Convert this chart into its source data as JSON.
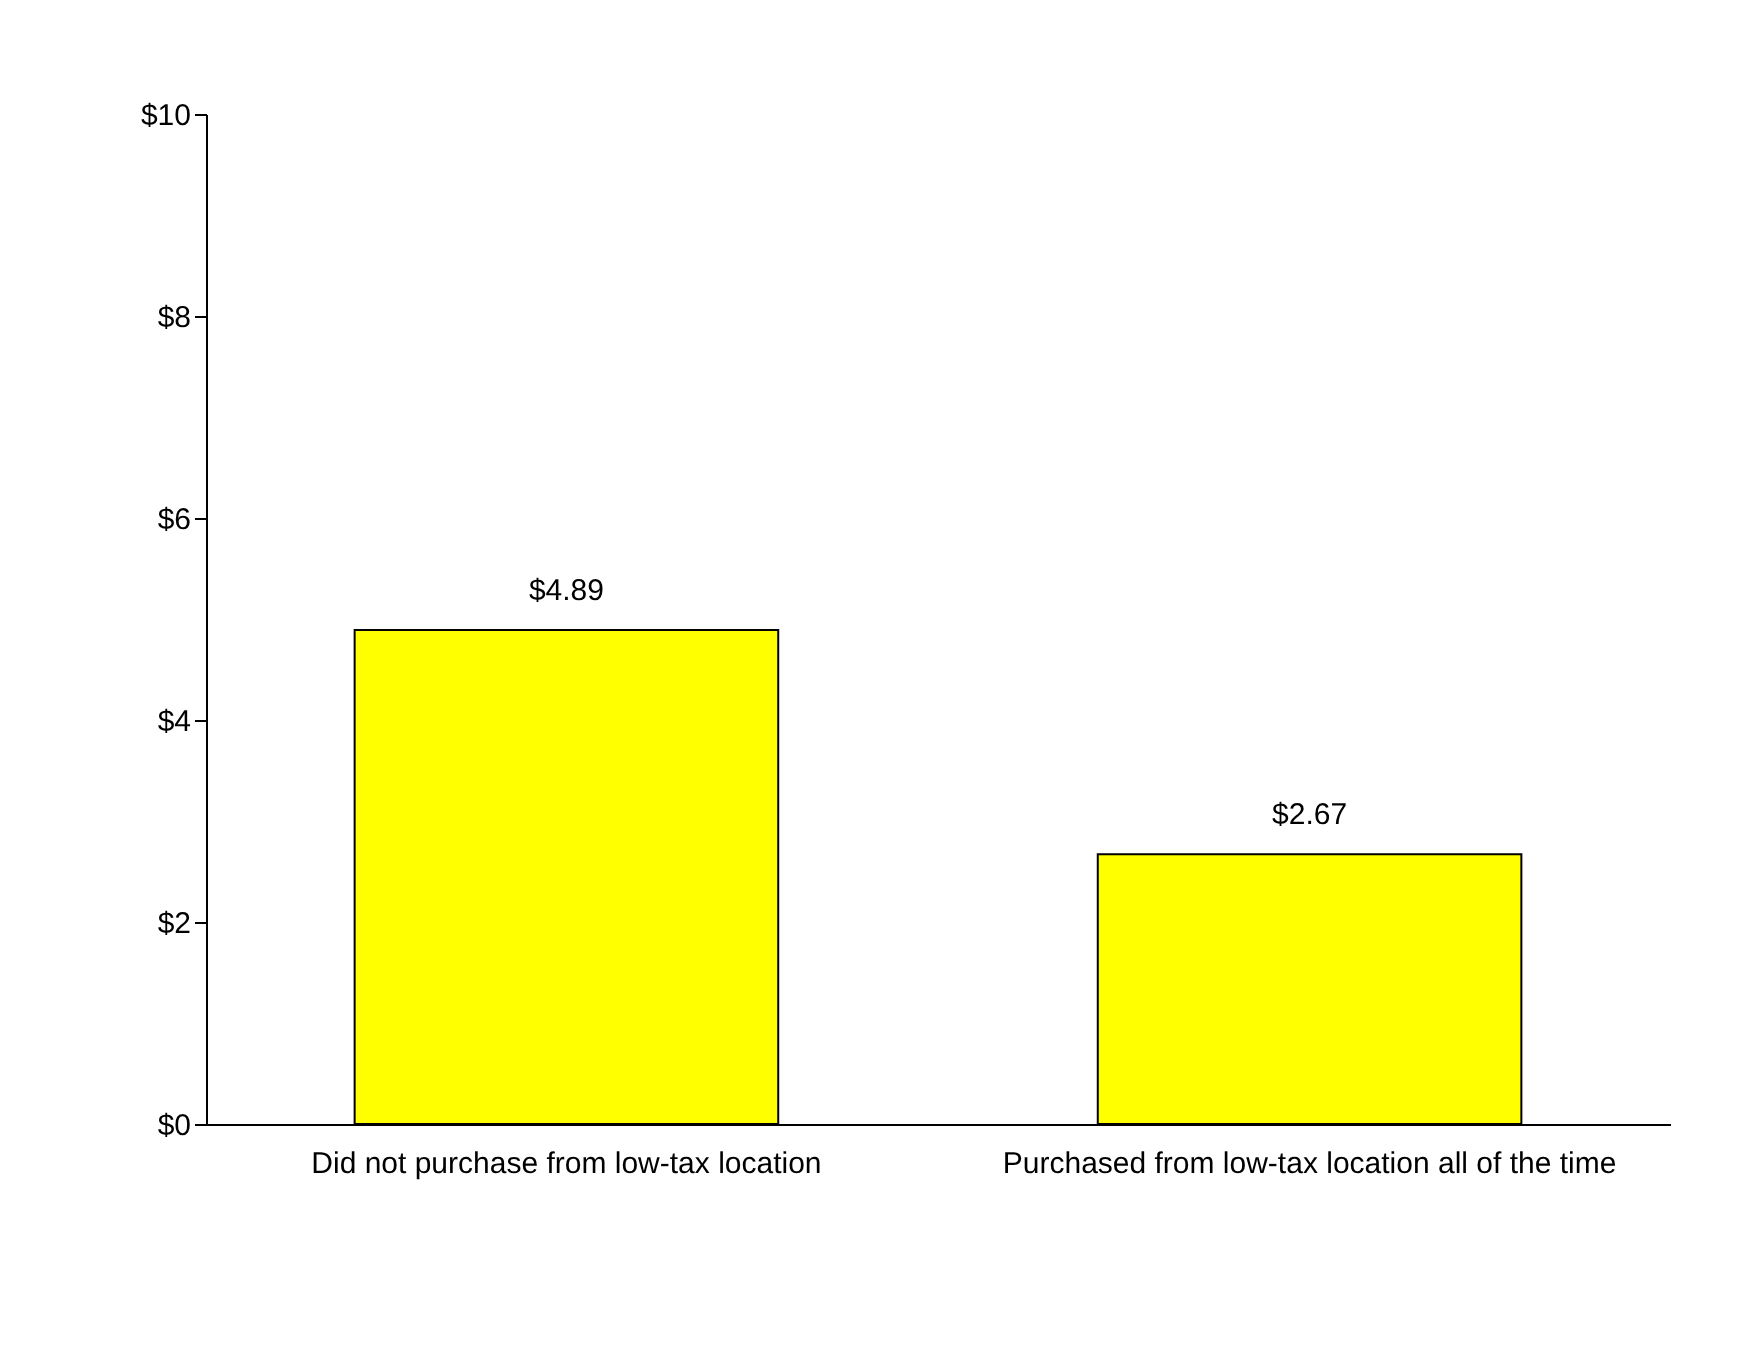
{
  "chart_data": {
    "type": "bar",
    "categories": [
      "Did not purchase from low-tax location",
      "Purchased from low-tax location all of the time"
    ],
    "values": [
      4.89,
      2.67
    ],
    "color": "#ffff00",
    "value_labels": [
      "$4.89",
      "$2.67"
    ],
    "ylim": [
      0,
      10
    ],
    "yticks": [
      {
        "value": 0,
        "label": "$0"
      },
      {
        "value": 2,
        "label": "$2"
      },
      {
        "value": 4,
        "label": "$4"
      },
      {
        "value": 6,
        "label": "$6"
      },
      {
        "value": 8,
        "label": "$8"
      },
      {
        "value": 10,
        "label": "$10"
      }
    ],
    "grid": false
  }
}
